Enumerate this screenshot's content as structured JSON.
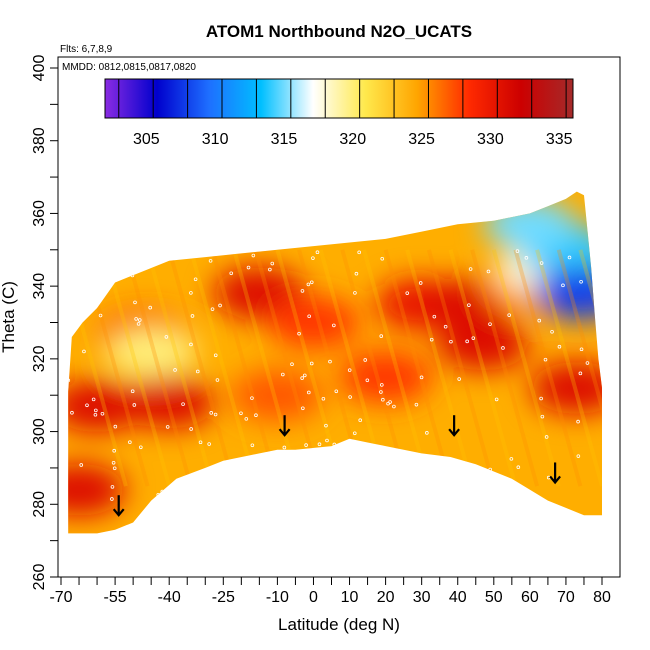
{
  "chart_data": {
    "type": "heatmap",
    "title": "ATOM1 Northbound N2O_UCATS",
    "notes": [
      "Flts: 6,7,8,9",
      "MMDD: 0812,0815,0817,0820"
    ],
    "xlabel": "Latitude (deg N)",
    "ylabel": "Theta (C)",
    "xlim": [
      -70,
      80
    ],
    "ylim": [
      260,
      400
    ],
    "x_ticks": [
      "-70",
      "-55",
      "-40",
      "-25",
      "-10",
      "0",
      "10",
      "20",
      "30",
      "40",
      "50",
      "60",
      "70",
      "80"
    ],
    "x_tick_values": [
      -70,
      -55,
      -40,
      -25,
      -10,
      0,
      10,
      20,
      30,
      40,
      50,
      60,
      70,
      80
    ],
    "y_ticks": [
      "260",
      "280",
      "300",
      "320",
      "340",
      "360",
      "380",
      "400"
    ],
    "y_tick_values": [
      260,
      280,
      300,
      320,
      340,
      360,
      380,
      400
    ],
    "colorbar": {
      "min": 302,
      "max": 336,
      "labels": [
        "305",
        "310",
        "315",
        "320",
        "325",
        "330",
        "335"
      ],
      "label_values": [
        305,
        310,
        315,
        320,
        325,
        330,
        335
      ],
      "colors": [
        "#8a2be2",
        "#0000cd",
        "#1e6fff",
        "#00bfff",
        "#ffffff",
        "#ffe94d",
        "#ffa500",
        "#ff2a00",
        "#cc0000",
        "#a52a2a"
      ]
    },
    "data_top": [
      [
        -68,
        311
      ],
      [
        -67,
        326
      ],
      [
        -64,
        330
      ],
      [
        -60,
        334
      ],
      [
        -55,
        341
      ],
      [
        -50,
        343
      ],
      [
        -45,
        345
      ],
      [
        -40,
        347
      ],
      [
        -30,
        348
      ],
      [
        -20,
        349
      ],
      [
        -10,
        350
      ],
      [
        0,
        351
      ],
      [
        10,
        352
      ],
      [
        20,
        353
      ],
      [
        30,
        355
      ],
      [
        40,
        357
      ],
      [
        50,
        358
      ],
      [
        60,
        360
      ],
      [
        65,
        362
      ],
      [
        70,
        364
      ],
      [
        73,
        366
      ],
      [
        75,
        365
      ]
    ],
    "data_bottom": [
      [
        -68,
        272
      ],
      [
        -60,
        272
      ],
      [
        -55,
        273
      ],
      [
        -50,
        275
      ],
      [
        -45,
        281
      ],
      [
        -38,
        287
      ],
      [
        -30,
        290
      ],
      [
        -25,
        292
      ],
      [
        -15,
        294
      ],
      [
        -10,
        295
      ],
      [
        -5,
        295
      ],
      [
        5,
        296
      ],
      [
        10,
        298
      ],
      [
        15,
        297
      ],
      [
        20,
        296
      ],
      [
        30,
        294
      ],
      [
        38,
        293
      ],
      [
        45,
        291
      ],
      [
        55,
        287
      ],
      [
        65,
        281
      ],
      [
        70,
        279
      ],
      [
        75,
        277
      ],
      [
        80,
        277
      ]
    ],
    "data_right_edge": [
      [
        80,
        277
      ],
      [
        80,
        312
      ],
      [
        79,
        320
      ],
      [
        78,
        332
      ],
      [
        77,
        345
      ],
      [
        76,
        355
      ],
      [
        75,
        365
      ]
    ],
    "value_regions": [
      {
        "lat": -60,
        "theta": 307,
        "n2o": 331
      },
      {
        "lat": -40,
        "theta": 308,
        "n2o": 331
      },
      {
        "lat": -47,
        "theta": 326,
        "n2o": 329
      },
      {
        "lat": -45,
        "theta": 322,
        "n2o": 320
      },
      {
        "lat": -15,
        "theta": 338,
        "n2o": 331
      },
      {
        "lat": 30,
        "theta": 335,
        "n2o": 330
      },
      {
        "lat": 43,
        "theta": 335,
        "n2o": 331
      },
      {
        "lat": 47,
        "theta": 324,
        "n2o": 331
      },
      {
        "lat": 60,
        "theta": 340,
        "n2o": 325
      },
      {
        "lat": 64,
        "theta": 345,
        "n2o": 318
      },
      {
        "lat": 70,
        "theta": 350,
        "n2o": 314
      },
      {
        "lat": 74,
        "theta": 338,
        "n2o": 308
      },
      {
        "lat": 60,
        "theta": 357,
        "n2o": 315
      },
      {
        "lat": 73,
        "theta": 312,
        "n2o": 331
      },
      {
        "lat": -65,
        "theta": 284,
        "n2o": 331
      },
      {
        "lat": -10,
        "theta": 310,
        "n2o": 327
      },
      {
        "lat": 20,
        "theta": 315,
        "n2o": 328
      },
      {
        "lat": 0,
        "theta": 330,
        "n2o": 328
      }
    ],
    "arrows": [
      {
        "lat": -54,
        "theta": 277
      },
      {
        "lat": -8,
        "theta": 299
      },
      {
        "lat": 39,
        "theta": 299
      },
      {
        "lat": 67,
        "theta": 286
      }
    ]
  }
}
